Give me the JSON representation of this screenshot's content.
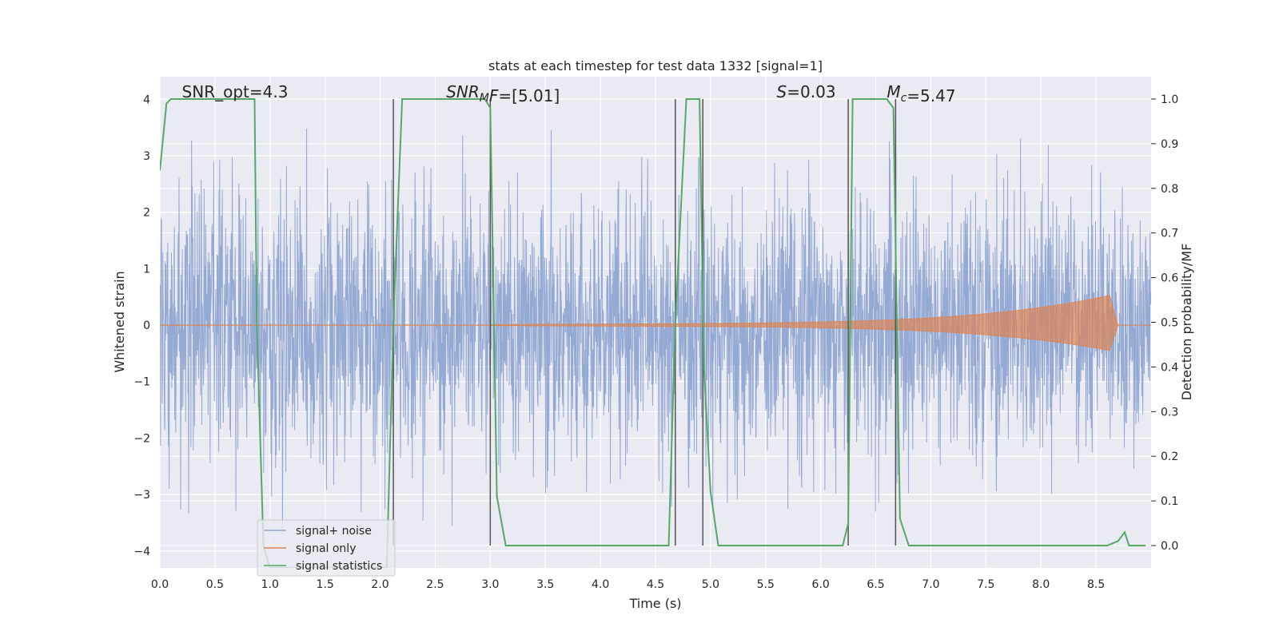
{
  "chart_data": {
    "type": "line",
    "title": "stats at each timestep for test data 1332 [signal=1]",
    "xlabel": "Time (s)",
    "ylabel": "Whitened strain",
    "ylabel_right": "Detection probability/MF",
    "xlim": [
      0,
      9.0
    ],
    "ylim": [
      -4.3,
      4.4
    ],
    "ylim_right": [
      -0.05,
      1.05
    ],
    "x_ticks": [
      0.0,
      0.5,
      1.0,
      1.5,
      2.0,
      2.5,
      3.0,
      3.5,
      4.0,
      4.5,
      5.0,
      5.5,
      6.0,
      6.5,
      7.0,
      7.5,
      8.0,
      8.5
    ],
    "y_ticks": [
      4,
      3,
      2,
      1,
      0,
      -1,
      -2,
      -3,
      -4
    ],
    "y_tick_labels": [
      "4",
      "3",
      "2",
      "1",
      "0",
      "−1",
      "−2",
      "−3",
      "−4"
    ],
    "y_right_ticks": [
      1.0,
      0.9,
      0.8,
      0.7,
      0.6,
      0.5,
      0.4,
      0.3,
      0.2,
      0.1,
      0.0
    ],
    "grid": true,
    "legend_position": "lower-left",
    "colors": {
      "noise": "#8fa5d1",
      "signal": "#dd8452",
      "stats": "#55a868",
      "vline": "#555555",
      "bg": "#eaeaf2"
    },
    "annotations": [
      {
        "x": 0.2,
        "parts": [
          {
            "text": "SNR_opt=4.3"
          }
        ]
      },
      {
        "x": 2.6,
        "parts": [
          {
            "text": "SNR",
            "italic": true
          },
          {
            "text": "M",
            "italic": true,
            "sub": true
          },
          {
            "text": "F",
            "italic": true
          },
          {
            "text": "=[5.01]"
          }
        ]
      },
      {
        "x": 5.6,
        "parts": [
          {
            "text": "S",
            "italic": true
          },
          {
            "text": "=0.03"
          }
        ]
      },
      {
        "x": 6.6,
        "parts": [
          {
            "text": "M",
            "italic": true
          },
          {
            "text": "c",
            "italic": true,
            "sub": true
          },
          {
            "text": "=5.47"
          }
        ]
      }
    ],
    "series": [
      {
        "name": "signal+ noise",
        "axis": "left",
        "description_values": "dense noise between approx -3.7 and 4.0, majority within -1.5 and 1.6"
      },
      {
        "name": "signal only",
        "axis": "left",
        "chirp_start": 3.0,
        "chirp_peak": 8.63,
        "peak_amplitude": 0.48,
        "end": 8.7
      },
      {
        "name": "signal statistics",
        "axis": "right",
        "x": [
          0.0,
          0.06,
          0.1,
          0.86,
          0.88,
          0.94,
          1.0,
          2.06,
          2.12,
          2.2,
          2.95,
          3.0,
          3.06,
          3.14,
          4.62,
          4.68,
          4.78,
          4.9,
          4.94,
          5.0,
          5.07,
          5.12,
          6.2,
          6.25,
          6.29,
          6.6,
          6.66,
          6.72,
          6.8,
          7.2,
          8.6,
          8.7,
          8.76,
          8.8,
          8.95
        ],
        "y": [
          0.84,
          0.99,
          1.0,
          1.0,
          0.5,
          0.0,
          -0.05,
          -0.05,
          0.5,
          1.0,
          1.0,
          0.98,
          0.11,
          0.0,
          0.0,
          0.5,
          1.0,
          1.0,
          0.4,
          0.12,
          0.0,
          0.0,
          0.0,
          0.05,
          1.0,
          1.0,
          0.98,
          0.06,
          0.0,
          0.0,
          0.0,
          0.01,
          0.03,
          0.0,
          0.0
        ]
      }
    ],
    "vlines": [
      {
        "x": 2.12,
        "y": [
          0.0,
          1.0
        ]
      },
      {
        "x": 3.0,
        "y": [
          0.0,
          1.0
        ]
      },
      {
        "x": 4.68,
        "y": [
          0.0,
          1.0
        ]
      },
      {
        "x": 4.93,
        "y": [
          0.0,
          1.0
        ]
      },
      {
        "x": 6.25,
        "y": [
          0.0,
          1.0
        ]
      },
      {
        "x": 6.68,
        "y": [
          0.0,
          1.0
        ]
      }
    ]
  }
}
